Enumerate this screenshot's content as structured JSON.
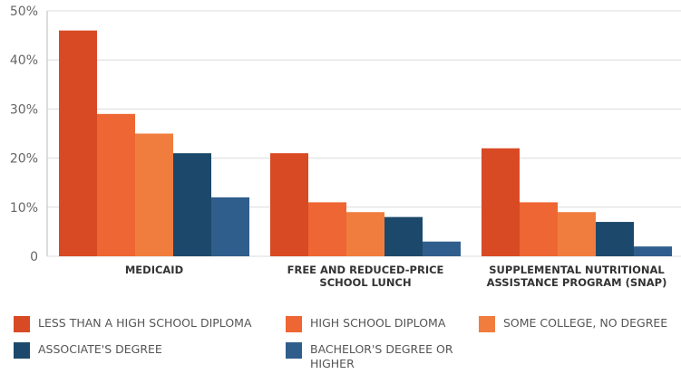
{
  "chart_data": {
    "type": "bar",
    "categories": [
      "MEDICAID",
      "FREE AND REDUCED-PRICE SCHOOL LUNCH",
      "SUPPLEMENTAL NUTRITIONAL ASSISTANCE PROGRAM (SNAP)"
    ],
    "series": [
      {
        "name": "LESS THAN A HIGH SCHOOL DIPLOMA",
        "color": "#d84a24",
        "values": [
          46,
          21,
          22
        ]
      },
      {
        "name": "HIGH SCHOOL DIPLOMA",
        "color": "#ee6633",
        "values": [
          29,
          11,
          11
        ]
      },
      {
        "name": "SOME COLLEGE, NO DEGREE",
        "color": "#f07d3e",
        "values": [
          25,
          9,
          9
        ]
      },
      {
        "name": "ASSOCIATE'S DEGREE",
        "color": "#1c496b",
        "values": [
          21,
          8,
          7
        ]
      },
      {
        "name": "BACHELOR'S DEGREE OR HIGHER",
        "color": "#2f5e8c",
        "values": [
          12,
          3,
          2
        ]
      }
    ],
    "ylim": [
      0,
      50
    ],
    "yticks": [
      0,
      {
        "value": 10,
        "label": "10%"
      },
      {
        "value": 20,
        "label": "20%"
      },
      {
        "value": 30,
        "label": "30%"
      },
      {
        "value": 40,
        "label": "40%"
      },
      {
        "value": 50,
        "label": "50%"
      }
    ],
    "grid": true
  }
}
